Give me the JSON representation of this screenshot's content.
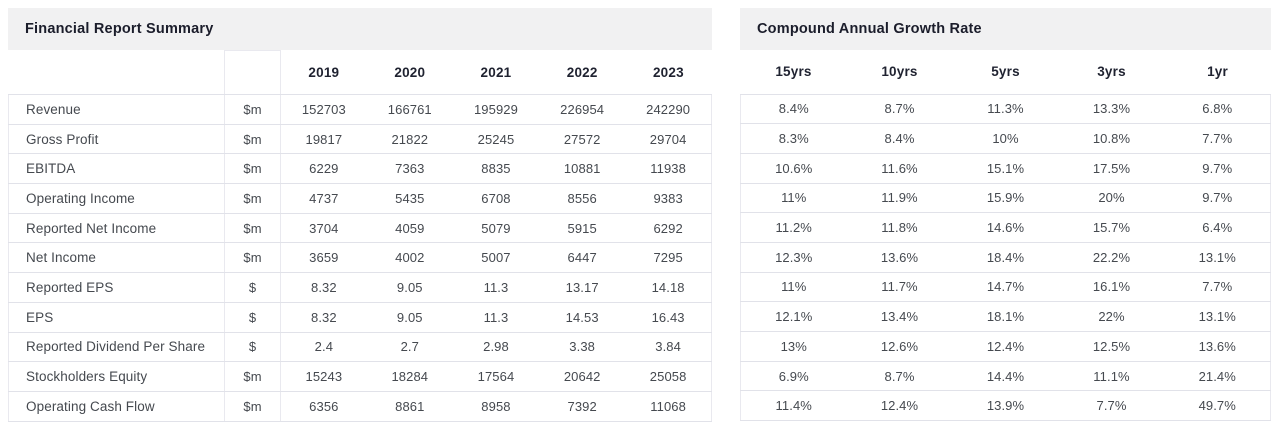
{
  "left_table": {
    "title": "Financial Report Summary",
    "years": [
      "2019",
      "2020",
      "2021",
      "2022",
      "2023"
    ],
    "rows": [
      {
        "label": "Revenue",
        "unit": "$m",
        "values": [
          "152703",
          "166761",
          "195929",
          "226954",
          "242290"
        ]
      },
      {
        "label": "Gross Profit",
        "unit": "$m",
        "values": [
          "19817",
          "21822",
          "25245",
          "27572",
          "29704"
        ]
      },
      {
        "label": "EBITDA",
        "unit": "$m",
        "values": [
          "6229",
          "7363",
          "8835",
          "10881",
          "11938"
        ]
      },
      {
        "label": "Operating Income",
        "unit": "$m",
        "values": [
          "4737",
          "5435",
          "6708",
          "8556",
          "9383"
        ]
      },
      {
        "label": "Reported Net Income",
        "unit": "$m",
        "values": [
          "3704",
          "4059",
          "5079",
          "5915",
          "6292"
        ]
      },
      {
        "label": "Net Income",
        "unit": "$m",
        "values": [
          "3659",
          "4002",
          "5007",
          "6447",
          "7295"
        ]
      },
      {
        "label": "Reported EPS",
        "unit": "$",
        "values": [
          "8.32",
          "9.05",
          "11.3",
          "13.17",
          "14.18"
        ]
      },
      {
        "label": "EPS",
        "unit": "$",
        "values": [
          "8.32",
          "9.05",
          "11.3",
          "14.53",
          "16.43"
        ]
      },
      {
        "label": "Reported Dividend Per Share",
        "unit": "$",
        "values": [
          "2.4",
          "2.7",
          "2.98",
          "3.38",
          "3.84"
        ]
      },
      {
        "label": "Stockholders Equity",
        "unit": "$m",
        "values": [
          "15243",
          "18284",
          "17564",
          "20642",
          "25058"
        ]
      },
      {
        "label": "Operating Cash Flow",
        "unit": "$m",
        "values": [
          "6356",
          "8861",
          "8958",
          "7392",
          "11068"
        ]
      }
    ]
  },
  "right_table": {
    "title": "Compound Annual Growth Rate",
    "periods": [
      "15yrs",
      "10yrs",
      "5yrs",
      "3yrs",
      "1yr"
    ],
    "rows": [
      {
        "label": "Revenue",
        "values": [
          "8.4%",
          "8.7%",
          "11.3%",
          "13.3%",
          "6.8%"
        ]
      },
      {
        "label": "Gross Profit",
        "values": [
          "8.3%",
          "8.4%",
          "10%",
          "10.8%",
          "7.7%"
        ]
      },
      {
        "label": "EBITDA",
        "values": [
          "10.6%",
          "11.6%",
          "15.1%",
          "17.5%",
          "9.7%"
        ]
      },
      {
        "label": "Operating Income",
        "values": [
          "11%",
          "11.9%",
          "15.9%",
          "20%",
          "9.7%"
        ]
      },
      {
        "label": "Reported Net Income",
        "values": [
          "11.2%",
          "11.8%",
          "14.6%",
          "15.7%",
          "6.4%"
        ]
      },
      {
        "label": "Net Income",
        "values": [
          "12.3%",
          "13.6%",
          "18.4%",
          "22.2%",
          "13.1%"
        ]
      },
      {
        "label": "Reported EPS",
        "values": [
          "11%",
          "11.7%",
          "14.7%",
          "16.1%",
          "7.7%"
        ]
      },
      {
        "label": "EPS",
        "values": [
          "12.1%",
          "13.4%",
          "18.1%",
          "22%",
          "13.1%"
        ]
      },
      {
        "label": "Reported Dividend Per Share",
        "values": [
          "13%",
          "12.6%",
          "12.4%",
          "12.5%",
          "13.6%"
        ]
      },
      {
        "label": "Stockholders Equity",
        "values": [
          "6.9%",
          "8.7%",
          "14.4%",
          "11.1%",
          "21.4%"
        ]
      },
      {
        "label": "Operating Cash Flow",
        "values": [
          "11.4%",
          "12.4%",
          "13.9%",
          "7.7%",
          "49.7%"
        ]
      }
    ]
  },
  "colors": {
    "title_bar_background": "#f1f1f2",
    "title_text": "#1b1d2b",
    "header_text": "#1f2230",
    "body_text": "#45494f",
    "row_border": "#e1e2e9",
    "column_border": "#e9e9ef",
    "page_background": "#ffffff"
  }
}
